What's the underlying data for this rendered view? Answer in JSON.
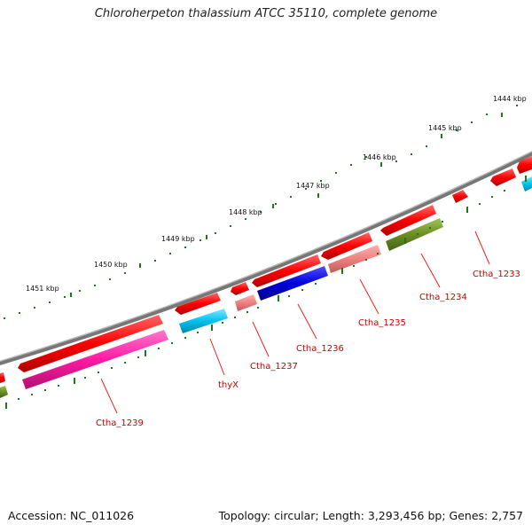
{
  "title": "Chloroherpeton thalassium ATCC 35110, complete genome",
  "footer": {
    "accession": "Accession: NC_011026",
    "summary": "Topology: circular; Length: 3,293,456 bp; Genes: 2,757"
  },
  "scale_labels": [
    "1444 kbp",
    "1445 kbp",
    "1446 kbp",
    "1447 kbp",
    "1448 kbp",
    "1449 kbp",
    "1450 kbp",
    "1451 kbp"
  ],
  "gene_labels": [
    "Ctha_1233",
    "Ctha_1234",
    "Ctha_1235",
    "Ctha_1236",
    "Ctha_1237",
    "thyX",
    "Ctha_1239"
  ],
  "colors": {
    "cds": "#ff0000",
    "pink": "#ff1aa3",
    "salmon": "#f08080",
    "blue": "#0000dd",
    "cyan": "#00c0ee",
    "olive": "#6b8e23",
    "backbone": "#777777",
    "ticks": "#1a7a1a",
    "label": "#cc0000"
  }
}
